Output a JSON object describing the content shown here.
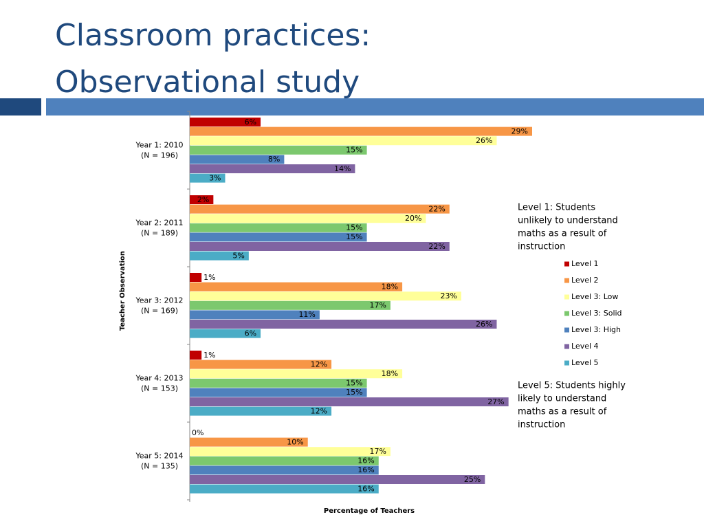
{
  "title": [
    "Classroom practices:",
    "Observational study"
  ],
  "chart_data": {
    "type": "hbar",
    "categories": [
      [
        "Year 1: 2010",
        "(N = 196)"
      ],
      [
        "Year 2: 2011",
        "(N = 189)"
      ],
      [
        "Year 3: 2012",
        "(N = 169)"
      ],
      [
        "Year 4: 2013",
        "(N = 153)"
      ],
      [
        "Year 5: 2014",
        "(N = 135)"
      ]
    ],
    "xlabel": "Percentage of Teachers",
    "ylabel": "Teacher Observation",
    "xlim": [
      0,
      29
    ],
    "series": [
      {
        "name": "Level 1",
        "color": "#c00000",
        "values": [
          6,
          2,
          1,
          1,
          0
        ],
        "value_labels": [
          "6%",
          "2%",
          "1%",
          "1%",
          "0%"
        ]
      },
      {
        "name": "Level 2",
        "color": "#f79646",
        "values": [
          29,
          22,
          18,
          12,
          10
        ],
        "value_labels": [
          "29%",
          "22%",
          "18%",
          "12%",
          "10%"
        ]
      },
      {
        "name": "Level 3: Low",
        "color": "#ffff99",
        "values": [
          26,
          20,
          23,
          18,
          17
        ],
        "value_labels": [
          "26%",
          "20%",
          "23%",
          "18%",
          "17%"
        ]
      },
      {
        "name": "Level 3: Solid",
        "color": "#7cc86e",
        "values": [
          15,
          15,
          17,
          15,
          16
        ],
        "value_labels": [
          "15%",
          "15%",
          "17%",
          "15%",
          "16%"
        ]
      },
      {
        "name": "Level 3: High",
        "color": "#4f81bd",
        "values": [
          8,
          15,
          11,
          15,
          16
        ],
        "value_labels": [
          "8%",
          "15%",
          "11%",
          "15%",
          "16%"
        ]
      },
      {
        "name": "Level 4",
        "color": "#8064a2",
        "values": [
          14,
          22,
          26,
          27,
          25
        ],
        "value_labels": [
          "14%",
          "22%",
          "26%",
          "27%",
          "25%"
        ]
      },
      {
        "name": "Level 5",
        "color": "#4bacc6",
        "values": [
          3,
          5,
          6,
          12,
          16
        ],
        "value_labels": [
          "3%",
          "5%",
          "6%",
          "12%",
          "16%"
        ]
      }
    ],
    "annotations": [
      [
        "Level 1: Students",
        "unlikely to understand",
        "maths as a result of",
        "instruction"
      ],
      [
        "Level 5: Students highly",
        "likely to understand",
        "maths as a result of",
        "instruction"
      ]
    ]
  }
}
